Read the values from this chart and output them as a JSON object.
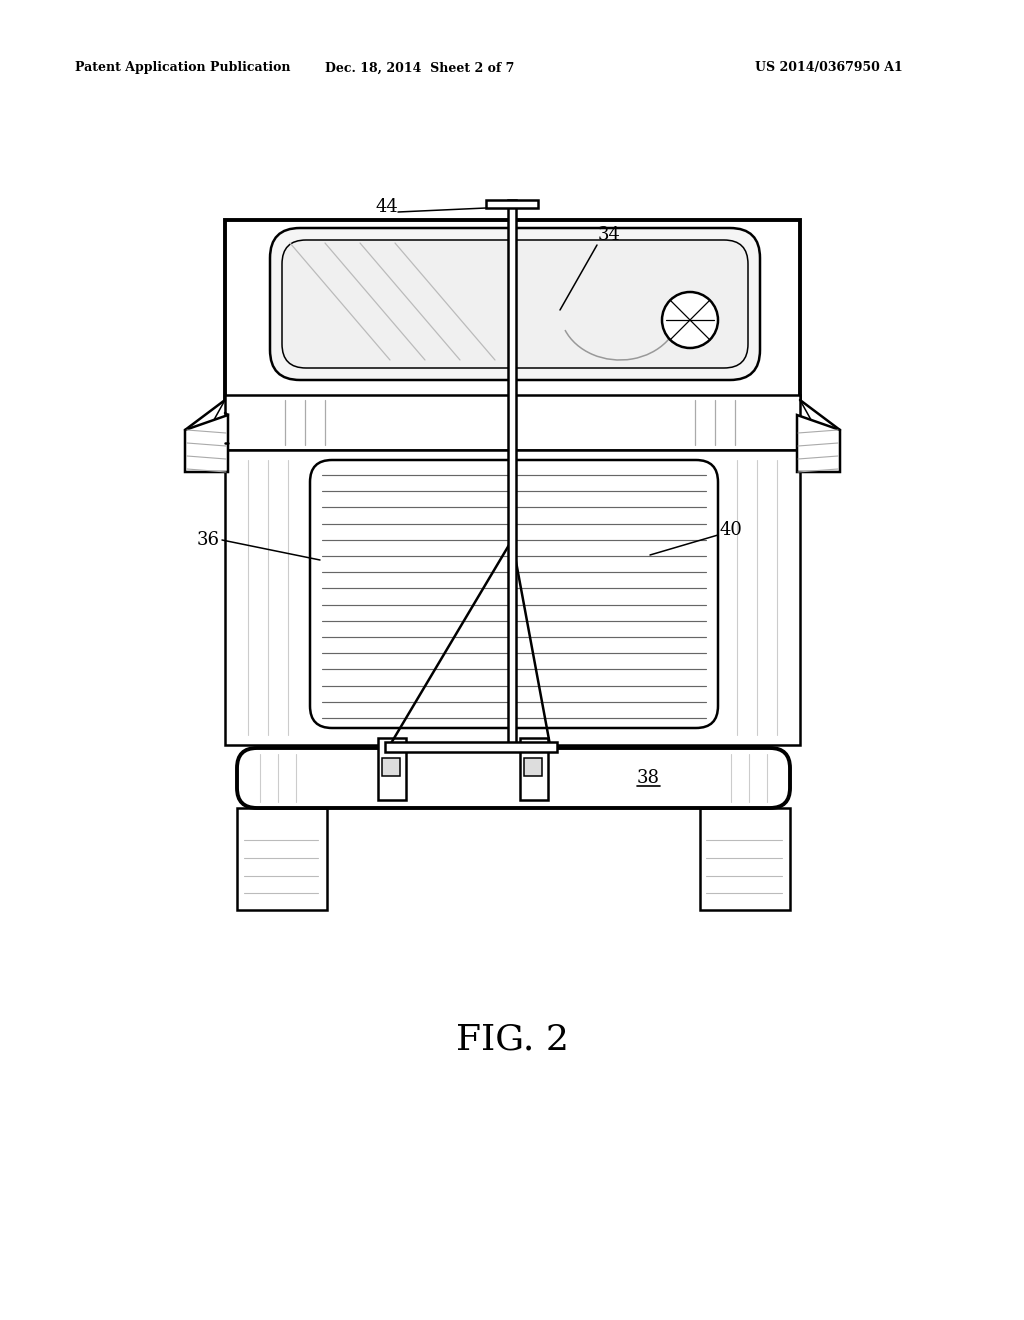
{
  "background_color": "#ffffff",
  "header_left": "Patent Application Publication",
  "header_center": "Dec. 18, 2014  Sheet 2 of 7",
  "header_right": "US 2014/0367950 A1",
  "figure_label": "FIG. 2",
  "line_color": "#000000",
  "gray_line": "#aaaaaa",
  "lw_main": 1.8,
  "lw_thick": 2.8,
  "lw_thin": 1.1
}
